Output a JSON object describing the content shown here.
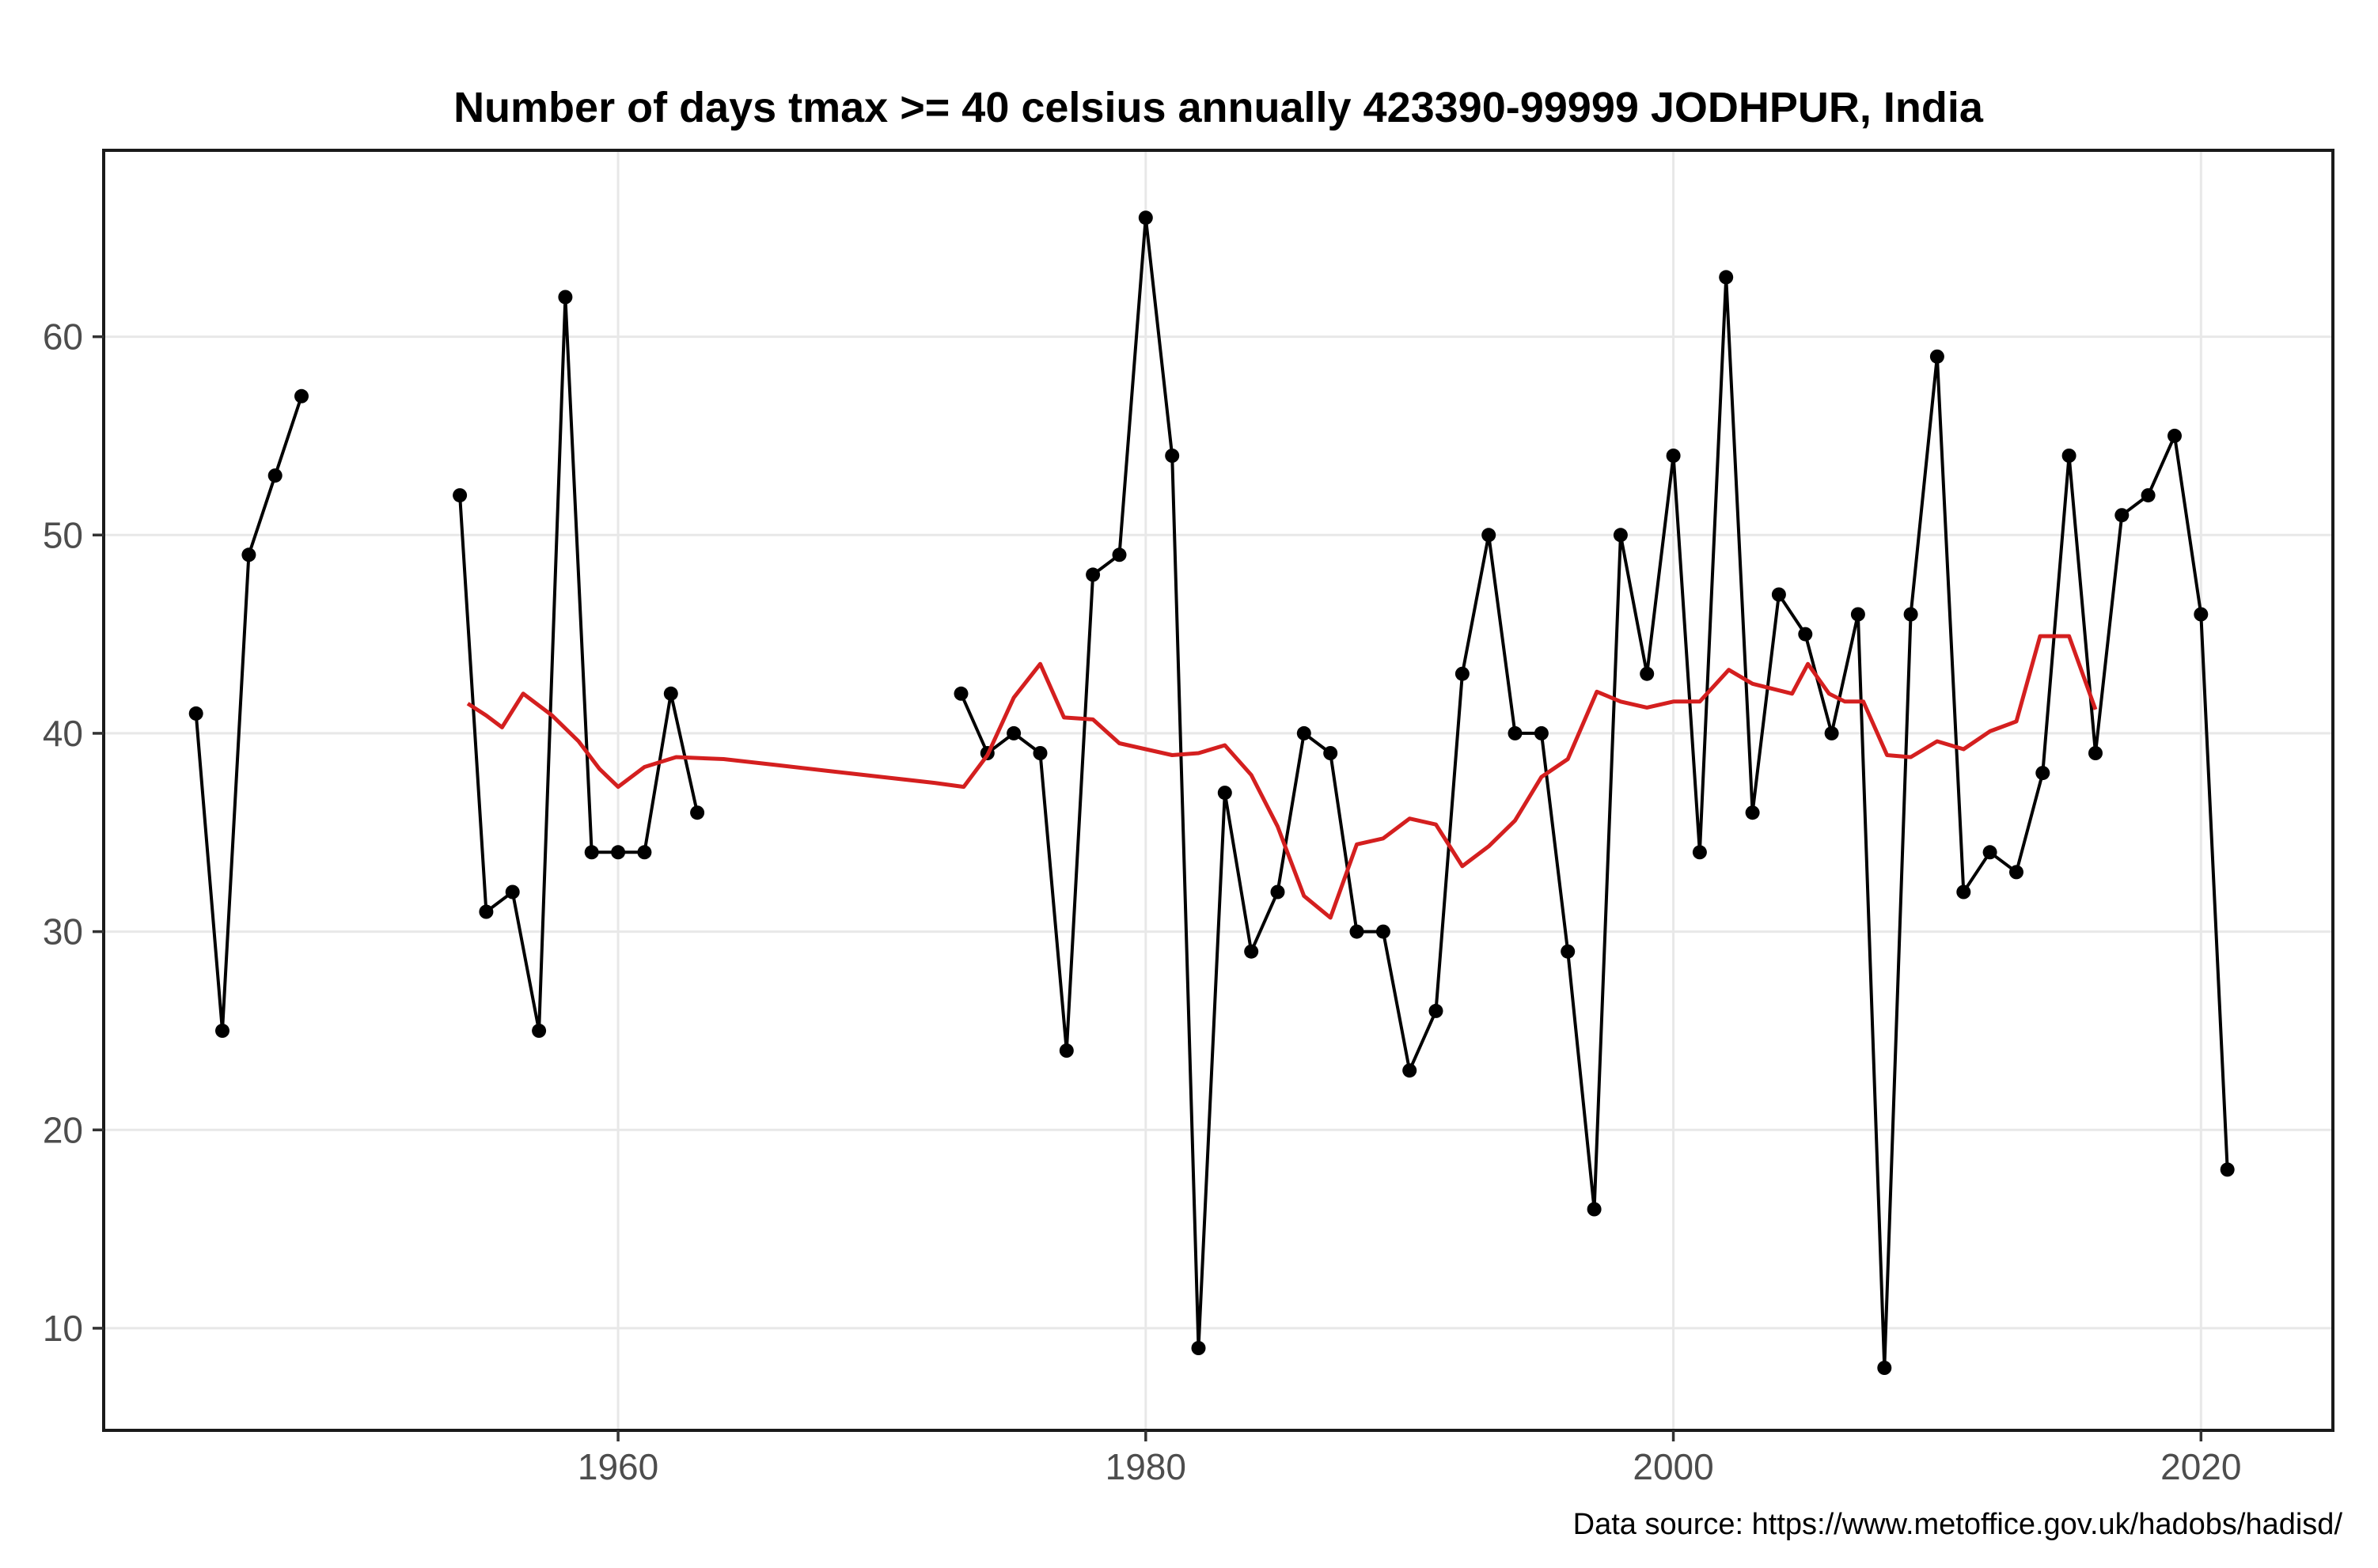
{
  "title": "Number of days tmax >= 40 celsius annually 423390-99999 JODHPUR, India",
  "caption": "Data source: https://www.metoffice.gov.uk/hadobs/hadisd/",
  "colors": {
    "series": "#000000",
    "trend": "#d41f1f",
    "grid": "#e8e8e8",
    "axis_text": "#4d4d4d",
    "tick_mark": "#333333",
    "panel_border": "#1a1a1a",
    "background": "#ffffff"
  },
  "chart_data": {
    "type": "line",
    "title": "Number of days tmax >= 40 celsius annually 423390-99999 JODHPUR, India",
    "xlabel": "",
    "ylabel": "",
    "grid": "major-only",
    "legend": "none",
    "x_ticks": [
      1960,
      1980,
      2000,
      2020
    ],
    "y_ticks": [
      10,
      20,
      30,
      40,
      50,
      60
    ],
    "xlim": [
      1940.5,
      2025.0
    ],
    "ylim": [
      4.85,
      69.4
    ],
    "series": [
      {
        "name": "days-tmax-ge-40-annual",
        "style": "line-with-points",
        "color_key": "series",
        "segments": [
          [
            [
              1944,
              41
            ],
            [
              1945,
              25
            ],
            [
              1946,
              49
            ],
            [
              1947,
              53
            ],
            [
              1948,
              57
            ]
          ],
          [
            [
              1954,
              52
            ],
            [
              1955,
              31
            ],
            [
              1956,
              32
            ],
            [
              1957,
              25
            ],
            [
              1958,
              62
            ],
            [
              1959,
              34
            ],
            [
              1960,
              34
            ],
            [
              1961,
              34
            ],
            [
              1962,
              42
            ],
            [
              1963,
              36
            ]
          ],
          [
            [
              1973,
              42
            ],
            [
              1974,
              39
            ],
            [
              1975,
              40
            ],
            [
              1976,
              39
            ],
            [
              1977,
              24
            ],
            [
              1978,
              48
            ],
            [
              1979,
              49
            ],
            [
              1980,
              66
            ],
            [
              1981,
              54
            ],
            [
              1982,
              9
            ],
            [
              1983,
              37
            ],
            [
              1984,
              29
            ],
            [
              1985,
              32
            ],
            [
              1986,
              40
            ],
            [
              1987,
              39
            ],
            [
              1988,
              30
            ],
            [
              1989,
              30
            ],
            [
              1990,
              23
            ],
            [
              1991,
              26
            ],
            [
              1992,
              43
            ],
            [
              1993,
              50
            ],
            [
              1994,
              40
            ],
            [
              1995,
              40
            ],
            [
              1996,
              29
            ],
            [
              1997,
              16
            ],
            [
              1998,
              50
            ],
            [
              1999,
              43
            ],
            [
              2000,
              54
            ],
            [
              2001,
              34
            ],
            [
              2002,
              63
            ],
            [
              2003,
              36
            ],
            [
              2004,
              47
            ],
            [
              2005,
              45
            ],
            [
              2006,
              40
            ],
            [
              2007,
              46
            ],
            [
              2008,
              8
            ],
            [
              2009,
              46
            ],
            [
              2010,
              59
            ],
            [
              2011,
              32
            ],
            [
              2012,
              34
            ],
            [
              2013,
              33
            ],
            [
              2014,
              38
            ],
            [
              2015,
              54
            ],
            [
              2016,
              39
            ],
            [
              2017,
              51
            ],
            [
              2018,
              52
            ],
            [
              2019,
              55
            ],
            [
              2020,
              46
            ],
            [
              2021,
              18
            ]
          ]
        ]
      },
      {
        "name": "smoothed-trend",
        "style": "line",
        "color_key": "trend",
        "points": [
          [
            1954.3,
            41.5
          ],
          [
            1955,
            40.9
          ],
          [
            1955.6,
            40.3
          ],
          [
            1956.4,
            42.0
          ],
          [
            1957.5,
            40.9
          ],
          [
            1958.5,
            39.6
          ],
          [
            1959.3,
            38.2
          ],
          [
            1960,
            37.3
          ],
          [
            1961,
            38.3
          ],
          [
            1962.2,
            38.8
          ],
          [
            1964,
            38.7
          ],
          [
            1966,
            38.4
          ],
          [
            1968,
            38.1
          ],
          [
            1970,
            37.8
          ],
          [
            1972,
            37.5
          ],
          [
            1973.1,
            37.3
          ],
          [
            1974,
            38.9
          ],
          [
            1975,
            41.8
          ],
          [
            1976,
            43.5
          ],
          [
            1976.9,
            40.8
          ],
          [
            1978,
            40.7
          ],
          [
            1979,
            39.5
          ],
          [
            1980,
            39.2
          ],
          [
            1981,
            38.9
          ],
          [
            1982,
            39.0
          ],
          [
            1983,
            39.4
          ],
          [
            1984,
            37.9
          ],
          [
            1985,
            35.3
          ],
          [
            1986,
            31.8
          ],
          [
            1987,
            30.7
          ],
          [
            1988,
            34.4
          ],
          [
            1989,
            34.7
          ],
          [
            1990,
            35.7
          ],
          [
            1991,
            35.4
          ],
          [
            1992,
            33.3
          ],
          [
            1993,
            34.3
          ],
          [
            1994,
            35.6
          ],
          [
            1995,
            37.8
          ],
          [
            1996,
            38.7
          ],
          [
            1997.1,
            42.1
          ],
          [
            1998,
            41.6
          ],
          [
            1999,
            41.3
          ],
          [
            2000,
            41.6
          ],
          [
            2001,
            41.6
          ],
          [
            2002.1,
            43.2
          ],
          [
            2003,
            42.5
          ],
          [
            2004.5,
            42.0
          ],
          [
            2005.1,
            43.5
          ],
          [
            2005.9,
            42.0
          ],
          [
            2006.5,
            41.6
          ],
          [
            2007.2,
            41.6
          ],
          [
            2008.1,
            38.9
          ],
          [
            2009,
            38.8
          ],
          [
            2010,
            39.6
          ],
          [
            2011,
            39.2
          ],
          [
            2012,
            40.1
          ],
          [
            2013,
            40.6
          ],
          [
            2013.9,
            44.9
          ],
          [
            2015,
            44.9
          ],
          [
            2016,
            41.2
          ]
        ]
      }
    ]
  }
}
